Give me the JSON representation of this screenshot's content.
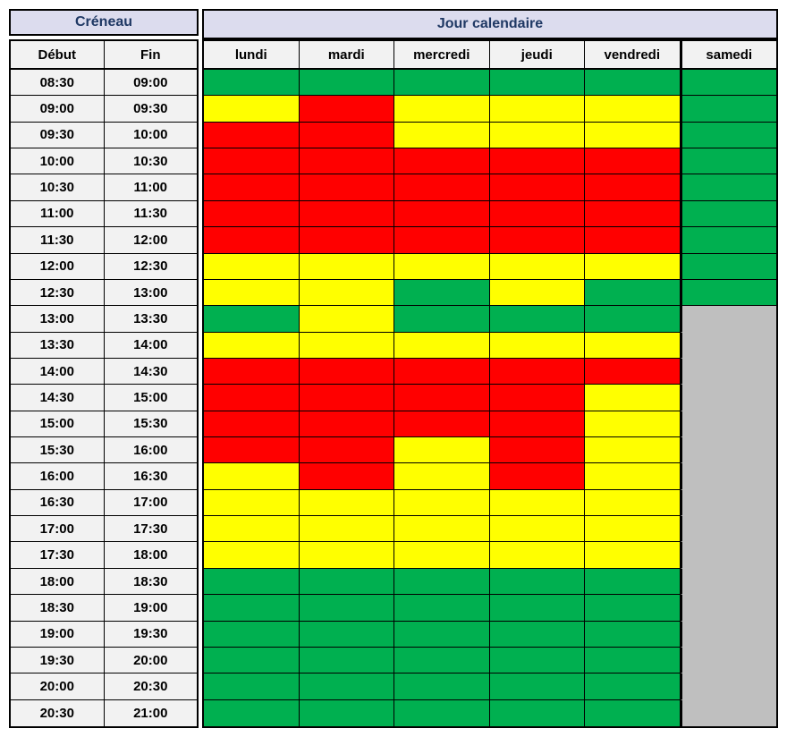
{
  "header": {
    "creneau": "Créneau",
    "jour_calendaire": "Jour calendaire",
    "debut": "Début",
    "fin": "Fin"
  },
  "colors": {
    "green": "#00B050",
    "yellow": "#FFFF00",
    "red": "#FF0000",
    "gray": "#BFBFBF",
    "header_bg": "#DCDCEE",
    "subheader_bg": "#F2F2F2",
    "header_text": "#1F3864",
    "border": "#000000"
  },
  "chart_data": {
    "type": "heatmap",
    "row_group_label": "Créneau",
    "column_group_label": "Jour calendaire",
    "row_header_columns": [
      "Début",
      "Fin"
    ],
    "columns": [
      "lundi",
      "mardi",
      "mercredi",
      "jeudi",
      "vendredi",
      "samedi"
    ],
    "cell_color_map": {
      "green": "#00B050",
      "yellow": "#FFFF00",
      "red": "#FF0000",
      "gray": "#BFBFBF"
    },
    "rows": [
      {
        "debut": "08:30",
        "fin": "09:00",
        "cells": [
          "green",
          "green",
          "green",
          "green",
          "green",
          "green"
        ]
      },
      {
        "debut": "09:00",
        "fin": "09:30",
        "cells": [
          "yellow",
          "red",
          "yellow",
          "yellow",
          "yellow",
          "green"
        ]
      },
      {
        "debut": "09:30",
        "fin": "10:00",
        "cells": [
          "red",
          "red",
          "yellow",
          "yellow",
          "yellow",
          "green"
        ]
      },
      {
        "debut": "10:00",
        "fin": "10:30",
        "cells": [
          "red",
          "red",
          "red",
          "red",
          "red",
          "green"
        ]
      },
      {
        "debut": "10:30",
        "fin": "11:00",
        "cells": [
          "red",
          "red",
          "red",
          "red",
          "red",
          "green"
        ]
      },
      {
        "debut": "11:00",
        "fin": "11:30",
        "cells": [
          "red",
          "red",
          "red",
          "red",
          "red",
          "green"
        ]
      },
      {
        "debut": "11:30",
        "fin": "12:00",
        "cells": [
          "red",
          "red",
          "red",
          "red",
          "red",
          "green"
        ]
      },
      {
        "debut": "12:00",
        "fin": "12:30",
        "cells": [
          "yellow",
          "yellow",
          "yellow",
          "yellow",
          "yellow",
          "green"
        ]
      },
      {
        "debut": "12:30",
        "fin": "13:00",
        "cells": [
          "yellow",
          "yellow",
          "green",
          "yellow",
          "green",
          "green"
        ]
      },
      {
        "debut": "13:00",
        "fin": "13:30",
        "cells": [
          "green",
          "yellow",
          "green",
          "green",
          "green",
          "gray"
        ]
      },
      {
        "debut": "13:30",
        "fin": "14:00",
        "cells": [
          "yellow",
          "yellow",
          "yellow",
          "yellow",
          "yellow",
          "gray"
        ]
      },
      {
        "debut": "14:00",
        "fin": "14:30",
        "cells": [
          "red",
          "red",
          "red",
          "red",
          "red",
          "gray"
        ]
      },
      {
        "debut": "14:30",
        "fin": "15:00",
        "cells": [
          "red",
          "red",
          "red",
          "red",
          "yellow",
          "gray"
        ]
      },
      {
        "debut": "15:00",
        "fin": "15:30",
        "cells": [
          "red",
          "red",
          "red",
          "red",
          "yellow",
          "gray"
        ]
      },
      {
        "debut": "15:30",
        "fin": "16:00",
        "cells": [
          "red",
          "red",
          "yellow",
          "red",
          "yellow",
          "gray"
        ]
      },
      {
        "debut": "16:00",
        "fin": "16:30",
        "cells": [
          "yellow",
          "red",
          "yellow",
          "red",
          "yellow",
          "gray"
        ]
      },
      {
        "debut": "16:30",
        "fin": "17:00",
        "cells": [
          "yellow",
          "yellow",
          "yellow",
          "yellow",
          "yellow",
          "gray"
        ]
      },
      {
        "debut": "17:00",
        "fin": "17:30",
        "cells": [
          "yellow",
          "yellow",
          "yellow",
          "yellow",
          "yellow",
          "gray"
        ]
      },
      {
        "debut": "17:30",
        "fin": "18:00",
        "cells": [
          "yellow",
          "yellow",
          "yellow",
          "yellow",
          "yellow",
          "gray"
        ]
      },
      {
        "debut": "18:00",
        "fin": "18:30",
        "cells": [
          "green",
          "green",
          "green",
          "green",
          "green",
          "gray"
        ]
      },
      {
        "debut": "18:30",
        "fin": "19:00",
        "cells": [
          "green",
          "green",
          "green",
          "green",
          "green",
          "gray"
        ]
      },
      {
        "debut": "19:00",
        "fin": "19:30",
        "cells": [
          "green",
          "green",
          "green",
          "green",
          "green",
          "gray"
        ]
      },
      {
        "debut": "19:30",
        "fin": "20:00",
        "cells": [
          "green",
          "green",
          "green",
          "green",
          "green",
          "gray"
        ]
      },
      {
        "debut": "20:00",
        "fin": "20:30",
        "cells": [
          "green",
          "green",
          "green",
          "green",
          "green",
          "gray"
        ]
      },
      {
        "debut": "20:30",
        "fin": "21:00",
        "cells": [
          "green",
          "green",
          "green",
          "green",
          "green",
          "gray"
        ]
      }
    ]
  }
}
